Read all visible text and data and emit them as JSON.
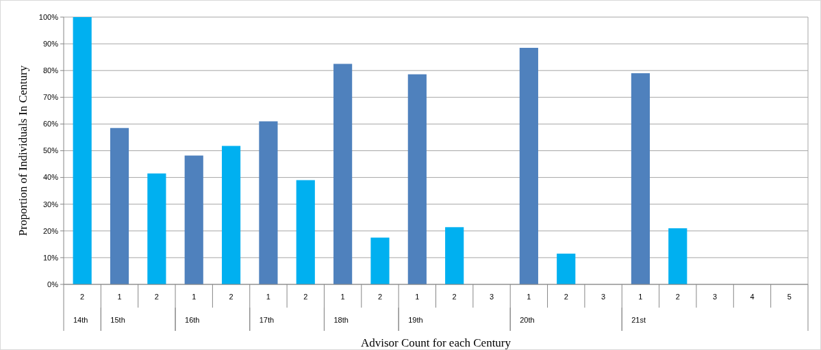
{
  "chart_data": {
    "type": "bar",
    "xlabel": "Advisor Count for each Century",
    "ylabel": "Proportion of Individuals In Century",
    "categories": [
      "2",
      "1",
      "2",
      "1",
      "2",
      "1",
      "2",
      "1",
      "2",
      "1",
      "2",
      "3",
      "1",
      "2",
      "3",
      "1",
      "2",
      "3",
      "4",
      "5"
    ],
    "annotations": [
      "14th",
      "15th",
      "16th",
      "17th",
      "18th",
      "19th",
      "20th",
      "21st"
    ],
    "values": [
      100,
      58.5,
      41.5,
      48.2,
      51.8,
      61,
      39,
      82.5,
      17.5,
      78.6,
      21.4,
      0,
      88.5,
      11.5,
      0,
      79,
      21,
      0,
      0,
      0
    ],
    "colors": [
      "#00b0f0",
      "#4f81bd",
      "#00b0f0",
      "#4f81bd",
      "#00b0f0",
      "#4f81bd",
      "#00b0f0",
      "#4f81bd",
      "#00b0f0",
      "#4f81bd",
      "#00b0f0",
      "#4f81bd",
      "#4f81bd",
      "#00b0f0",
      "#4f81bd",
      "#4f81bd",
      "#00b0f0",
      "#4f81bd",
      "#4f81bd",
      "#4f81bd"
    ],
    "ylim": [
      0,
      100
    ],
    "yticks": [
      {
        "value": 0,
        "label": "0%"
      },
      {
        "value": 10,
        "label": "10%"
      },
      {
        "value": 20,
        "label": "20%"
      },
      {
        "value": 30,
        "label": "30%"
      },
      {
        "value": 40,
        "label": "40%"
      },
      {
        "value": 50,
        "label": "50%"
      },
      {
        "value": 60,
        "label": "60%"
      },
      {
        "value": 70,
        "label": "70%"
      },
      {
        "value": 80,
        "label": "80%"
      },
      {
        "value": 90,
        "label": "90%"
      },
      {
        "value": 100,
        "label": "100%"
      }
    ],
    "grid": "y"
  }
}
